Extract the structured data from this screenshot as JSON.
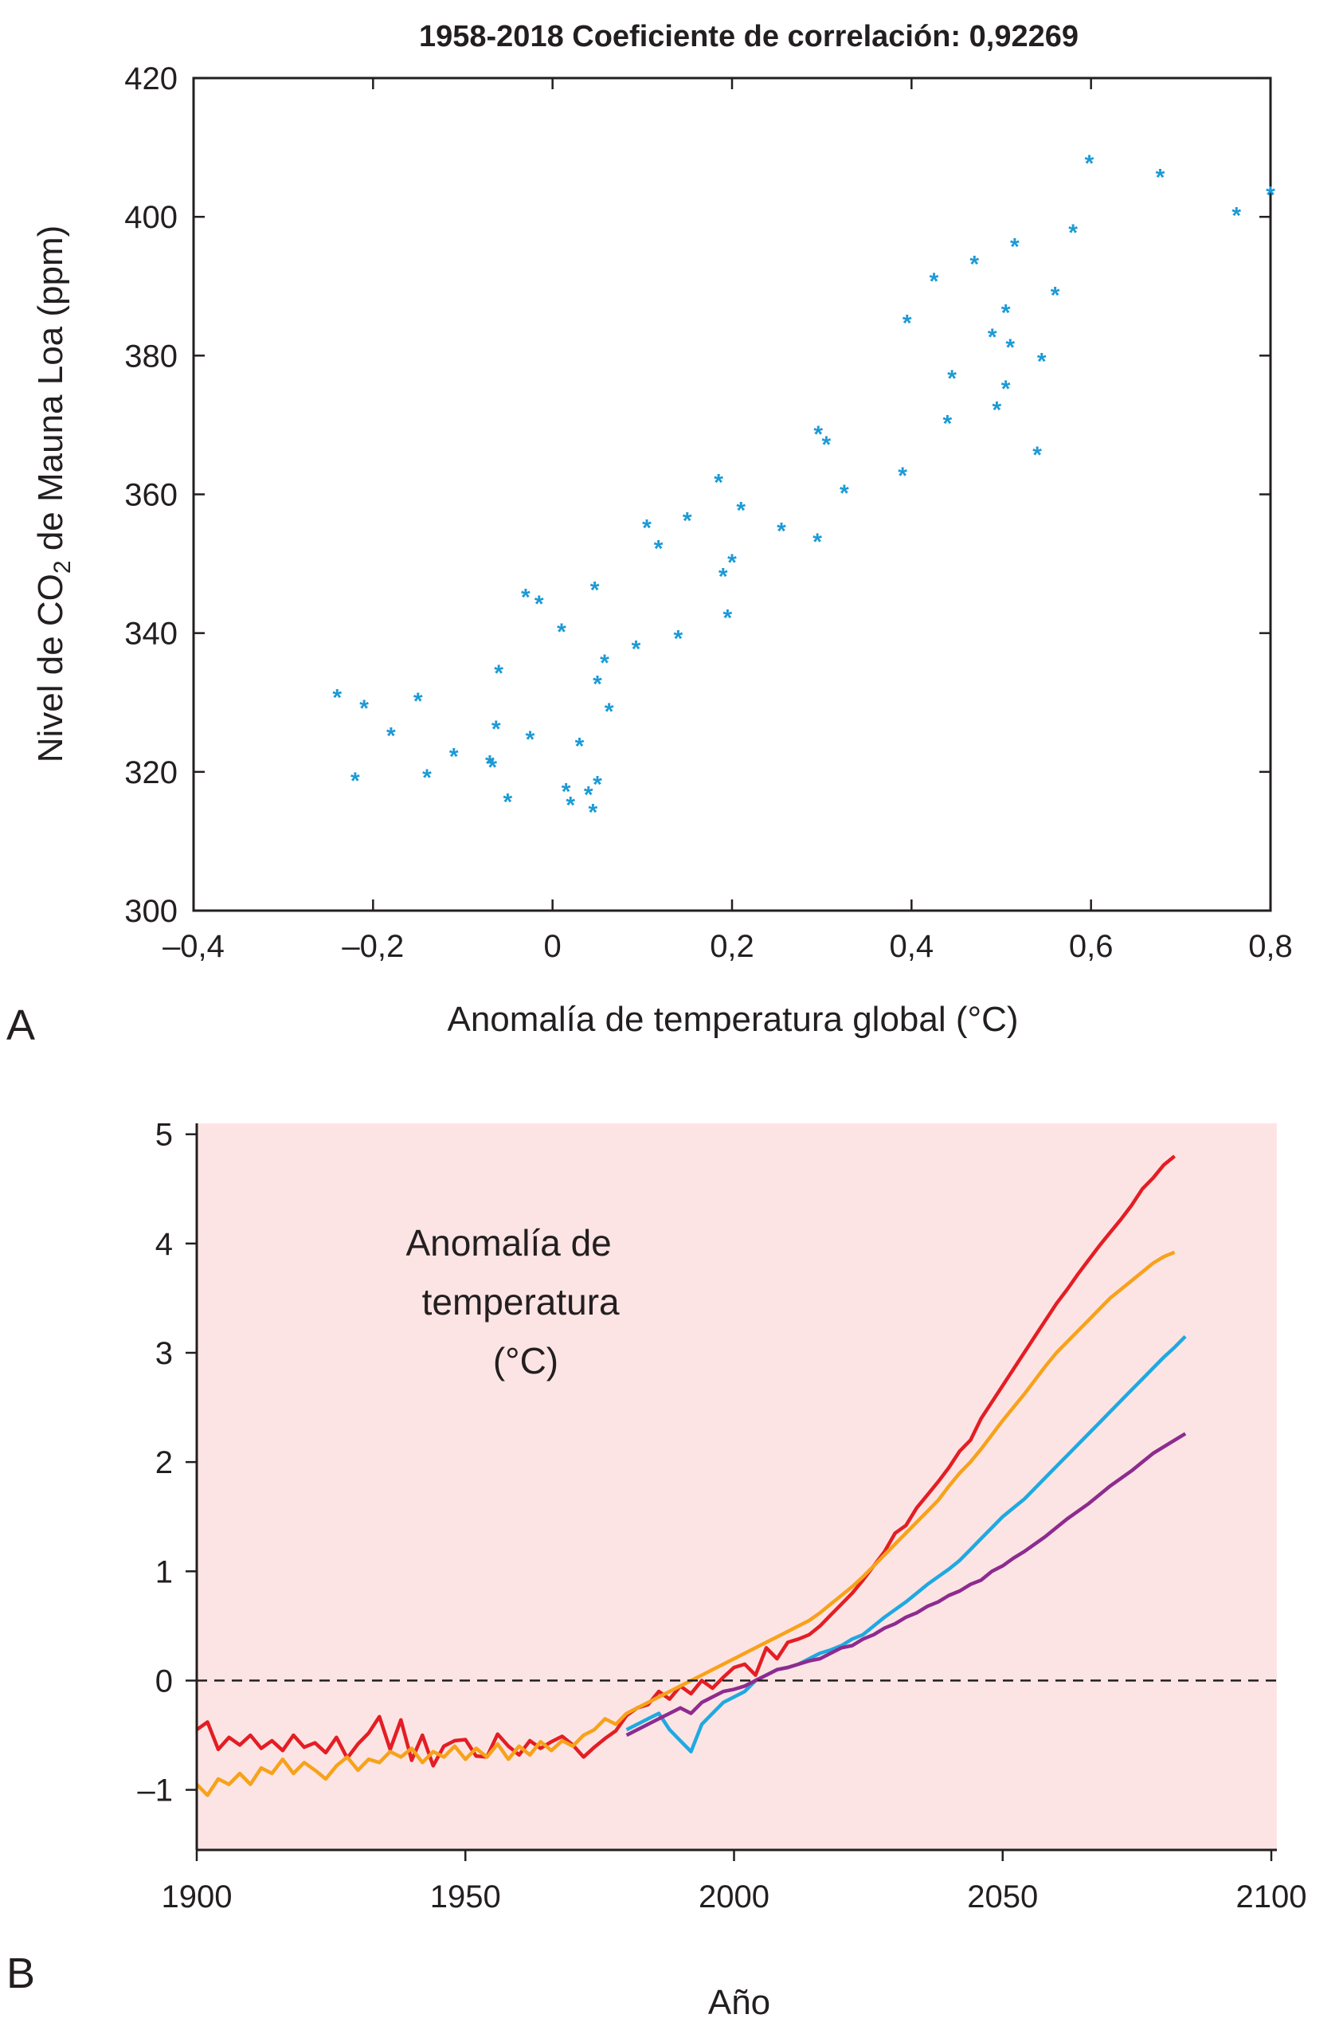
{
  "panels": {
    "a": {
      "letter": "A"
    },
    "b": {
      "letter": "B"
    }
  },
  "chart_data": [
    {
      "type": "scatter",
      "title": "1958-2018 Coeficiente de correlación: 0,92269",
      "xlabel": "Anomalía de temperatura global (°C)",
      "ylabel_pre": "Nivel de CO",
      "ylabel_sub": "2",
      "ylabel_post": " de Mauna Loa (ppm)",
      "xlim": [
        -0.4,
        0.8
      ],
      "ylim": [
        300,
        420
      ],
      "xticks": [
        -0.4,
        -0.2,
        0,
        0.2,
        0.4,
        0.6,
        0.8
      ],
      "xtick_labels": [
        "–0,4",
        "–0,2",
        "0",
        "0,2",
        "0,4",
        "0,6",
        "0,8"
      ],
      "yticks": [
        300,
        320,
        340,
        360,
        380,
        400,
        420
      ],
      "ytick_labels": [
        "300",
        "320",
        "340",
        "360",
        "380",
        "400",
        "420"
      ],
      "marker": "*",
      "color": "#1b9ad6",
      "grid": false,
      "points": [
        [
          -0.24,
          331.5
        ],
        [
          -0.22,
          319.5
        ],
        [
          -0.21,
          330.0
        ],
        [
          -0.18,
          326.0
        ],
        [
          -0.15,
          331.0
        ],
        [
          -0.14,
          320.0
        ],
        [
          -0.11,
          323.0
        ],
        [
          -0.07,
          322.0
        ],
        [
          -0.067,
          321.5
        ],
        [
          -0.063,
          327.0
        ],
        [
          -0.06,
          335.0
        ],
        [
          -0.05,
          316.5
        ],
        [
          -0.03,
          346.0
        ],
        [
          -0.025,
          325.5
        ],
        [
          -0.015,
          345.0
        ],
        [
          0.01,
          341.0
        ],
        [
          0.015,
          318.0
        ],
        [
          0.02,
          316.0
        ],
        [
          0.03,
          324.5
        ],
        [
          0.04,
          317.5
        ],
        [
          0.045,
          315.0
        ],
        [
          0.047,
          347.0
        ],
        [
          0.05,
          333.5
        ],
        [
          0.05,
          319.0
        ],
        [
          0.058,
          336.5
        ],
        [
          0.063,
          329.5
        ],
        [
          0.093,
          338.5
        ],
        [
          0.105,
          356.0
        ],
        [
          0.118,
          353.0
        ],
        [
          0.14,
          340.0
        ],
        [
          0.15,
          357.0
        ],
        [
          0.185,
          362.5
        ],
        [
          0.19,
          349.0
        ],
        [
          0.195,
          343.0
        ],
        [
          0.2,
          351.0
        ],
        [
          0.21,
          358.5
        ],
        [
          0.255,
          355.5
        ],
        [
          0.295,
          354.0
        ],
        [
          0.296,
          369.5
        ],
        [
          0.305,
          368.0
        ],
        [
          0.325,
          361.0
        ],
        [
          0.39,
          363.5
        ],
        [
          0.395,
          385.5
        ],
        [
          0.425,
          391.5
        ],
        [
          0.44,
          371.0
        ],
        [
          0.445,
          377.5
        ],
        [
          0.47,
          394.0
        ],
        [
          0.49,
          383.5
        ],
        [
          0.495,
          373.0
        ],
        [
          0.505,
          376.0
        ],
        [
          0.505,
          387.0
        ],
        [
          0.51,
          382.0
        ],
        [
          0.515,
          396.5
        ],
        [
          0.54,
          366.5
        ],
        [
          0.545,
          380.0
        ],
        [
          0.56,
          389.5
        ],
        [
          0.58,
          398.5
        ],
        [
          0.598,
          408.5
        ],
        [
          0.677,
          406.5
        ],
        [
          0.762,
          401.0
        ],
        [
          0.8,
          404.0
        ]
      ]
    },
    {
      "type": "line",
      "xlabel": "Año",
      "annotation": [
        "Anomalía de",
        "temperatura",
        "(°C)"
      ],
      "xlim": [
        1900,
        2100
      ],
      "ylim": [
        -1.55,
        5.1
      ],
      "xticks": [
        1900,
        1950,
        2000,
        2050,
        2100
      ],
      "xtick_labels": [
        "1900",
        "1950",
        "2000",
        "2050",
        "2100"
      ],
      "yticks": [
        -1,
        0,
        1,
        2,
        3,
        4,
        5
      ],
      "ytick_labels": [
        "–1",
        "0",
        "1",
        "2",
        "3",
        "4",
        "5"
      ],
      "background": "#fde4e4",
      "reference_line": {
        "y": 0,
        "style": "dashed"
      },
      "series": [
        {
          "color": "#e31e24",
          "start": 1900,
          "step": 2,
          "values": [
            -0.45,
            -0.38,
            -0.63,
            -0.52,
            -0.59,
            -0.5,
            -0.62,
            -0.55,
            -0.64,
            -0.5,
            -0.61,
            -0.57,
            -0.66,
            -0.52,
            -0.71,
            -0.58,
            -0.48,
            -0.33,
            -0.63,
            -0.36,
            -0.73,
            -0.5,
            -0.78,
            -0.6,
            -0.55,
            -0.54,
            -0.69,
            -0.7,
            -0.49,
            -0.6,
            -0.68,
            -0.55,
            -0.62,
            -0.56,
            -0.51,
            -0.59,
            -0.7,
            -0.61,
            -0.53,
            -0.46,
            -0.32,
            -0.25,
            -0.22,
            -0.1,
            -0.17,
            -0.05,
            -0.12,
            0.0,
            -0.07,
            0.03,
            0.12,
            0.15,
            0.05,
            0.3,
            0.2,
            0.35,
            0.38,
            0.42,
            0.5,
            0.6,
            0.7,
            0.8,
            0.92,
            1.05,
            1.18,
            1.35,
            1.42,
            1.58,
            1.7,
            1.82,
            1.95,
            2.1,
            2.2,
            2.4,
            2.55,
            2.7,
            2.85,
            3.0,
            3.15,
            3.3,
            3.45,
            3.58,
            3.72,
            3.85,
            3.98,
            4.1,
            4.22,
            4.35,
            4.5,
            4.6,
            4.72,
            4.8
          ]
        },
        {
          "color": "#f7a21b",
          "start": 1900,
          "step": 2,
          "values": [
            -0.95,
            -1.05,
            -0.9,
            -0.95,
            -0.85,
            -0.95,
            -0.8,
            -0.85,
            -0.72,
            -0.85,
            -0.75,
            -0.82,
            -0.9,
            -0.78,
            -0.7,
            -0.82,
            -0.72,
            -0.75,
            -0.65,
            -0.7,
            -0.62,
            -0.75,
            -0.65,
            -0.7,
            -0.6,
            -0.72,
            -0.62,
            -0.7,
            -0.58,
            -0.72,
            -0.6,
            -0.68,
            -0.56,
            -0.64,
            -0.55,
            -0.6,
            -0.5,
            -0.45,
            -0.35,
            -0.4,
            -0.3,
            -0.25,
            -0.2,
            -0.15,
            -0.1,
            -0.05,
            0.0,
            0.05,
            0.1,
            0.15,
            0.2,
            0.25,
            0.3,
            0.35,
            0.4,
            0.45,
            0.5,
            0.55,
            0.62,
            0.7,
            0.78,
            0.86,
            0.95,
            1.05,
            1.15,
            1.25,
            1.35,
            1.45,
            1.55,
            1.65,
            1.78,
            1.9,
            2.0,
            2.12,
            2.25,
            2.38,
            2.5,
            2.62,
            2.75,
            2.88,
            3.0,
            3.1,
            3.2,
            3.3,
            3.4,
            3.5,
            3.58,
            3.66,
            3.74,
            3.82,
            3.88,
            3.92
          ]
        },
        {
          "color": "#1fa9e1",
          "start": 1980,
          "step": 2,
          "values": [
            -0.45,
            -0.4,
            -0.35,
            -0.3,
            -0.45,
            -0.55,
            -0.65,
            -0.4,
            -0.3,
            -0.2,
            -0.15,
            -0.1,
            0.0,
            0.05,
            0.1,
            0.12,
            0.15,
            0.2,
            0.25,
            0.28,
            0.32,
            0.38,
            0.42,
            0.5,
            0.58,
            0.65,
            0.72,
            0.8,
            0.88,
            0.95,
            1.02,
            1.1,
            1.2,
            1.3,
            1.4,
            1.5,
            1.58,
            1.66,
            1.76,
            1.86,
            1.96,
            2.06,
            2.16,
            2.26,
            2.36,
            2.46,
            2.56,
            2.66,
            2.76,
            2.86,
            2.96,
            3.05,
            3.15
          ]
        },
        {
          "color": "#8e2b8f",
          "start": 1980,
          "step": 2,
          "values": [
            -0.5,
            -0.45,
            -0.4,
            -0.35,
            -0.3,
            -0.25,
            -0.3,
            -0.2,
            -0.15,
            -0.1,
            -0.08,
            -0.05,
            0.0,
            0.05,
            0.1,
            0.12,
            0.15,
            0.18,
            0.2,
            0.25,
            0.3,
            0.32,
            0.38,
            0.42,
            0.48,
            0.52,
            0.58,
            0.62,
            0.68,
            0.72,
            0.78,
            0.82,
            0.88,
            0.92,
            1.0,
            1.05,
            1.12,
            1.18,
            1.25,
            1.32,
            1.4,
            1.48,
            1.55,
            1.62,
            1.7,
            1.78,
            1.85,
            1.92,
            2.0,
            2.08,
            2.14,
            2.2,
            2.26
          ]
        }
      ]
    }
  ]
}
